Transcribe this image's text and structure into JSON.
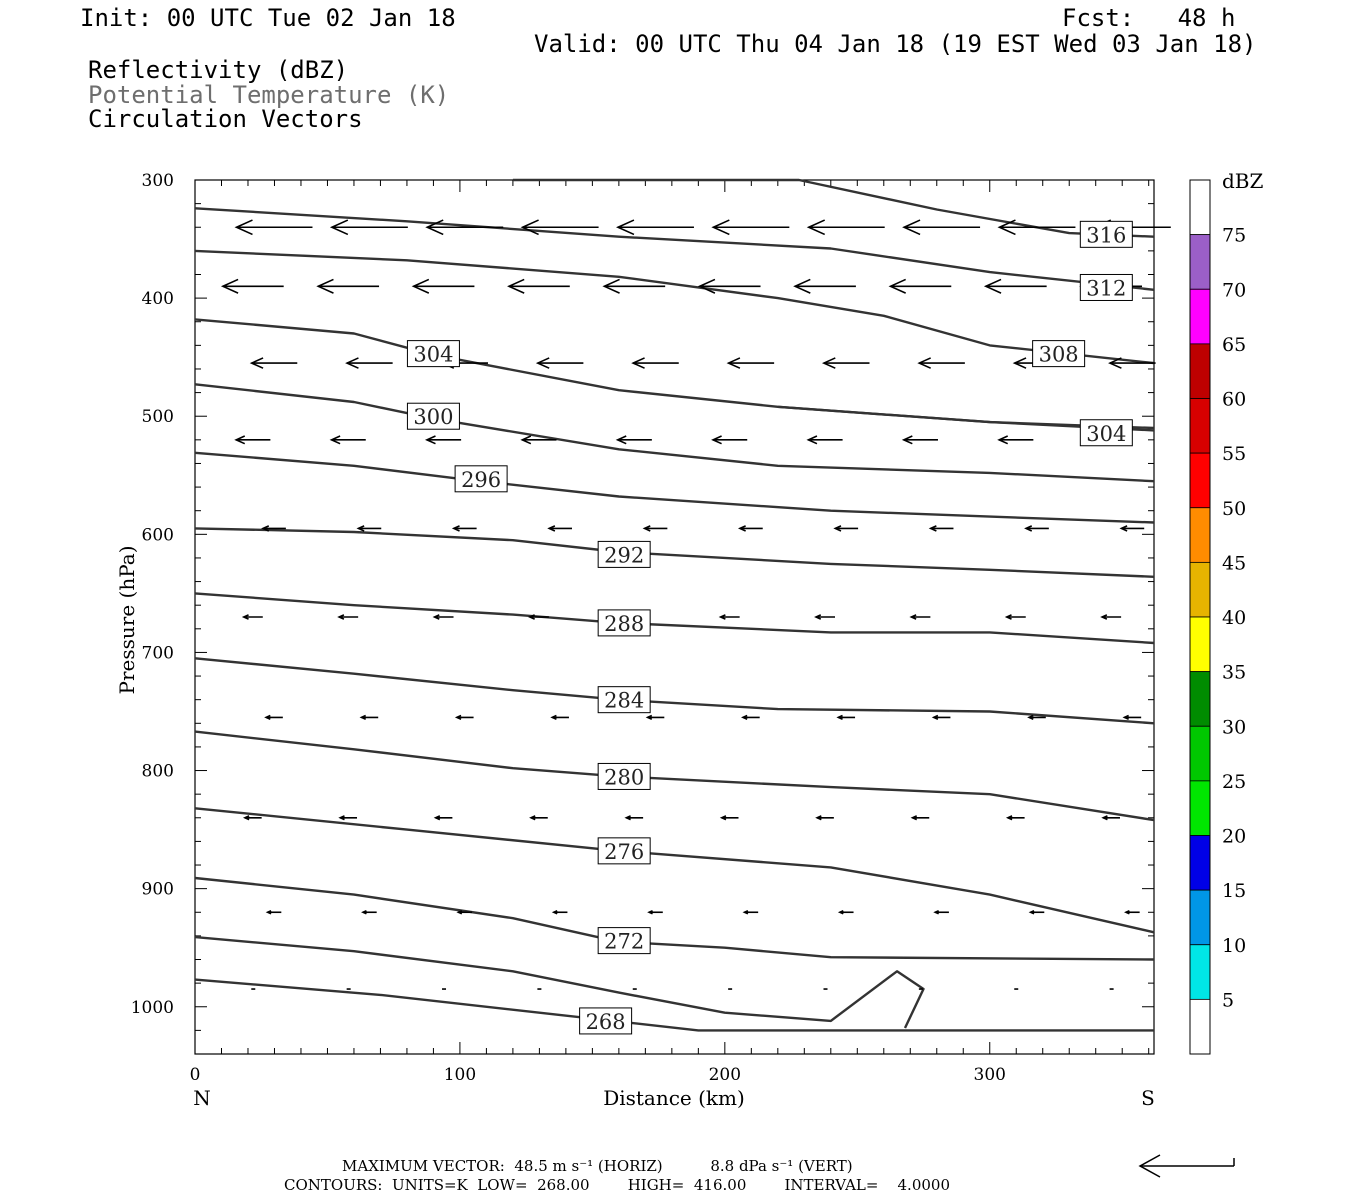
{
  "header": {
    "init": "Init: 00 UTC Tue 02 Jan 18",
    "fcst": "Fcst:   48 h",
    "valid": "Valid: 00 UTC Thu 04 Jan 18 (19 EST Wed 03 Jan 18)",
    "field1": "Reflectivity (dBZ)",
    "field2": "Potential Temperature (K)",
    "field3": "Circulation Vectors"
  },
  "footer": {
    "max_vector": "MAXIMUM VECTOR:  48.5 m s⁻¹ (HORIZ)          8.8 dPa s⁻¹ (VERT)",
    "contours": "CONTOURS:  UNITS=K  LOW=  268.00        HIGH=  416.00        INTERVAL=    4.0000"
  },
  "chart_data": {
    "type": "line",
    "xlabel": "Distance (km)",
    "ylabel": "Pressure (hPa)",
    "xlim": [
      0,
      362
    ],
    "ylim": [
      1040,
      300
    ],
    "x_ticks": [
      "0",
      "100",
      "200",
      "300"
    ],
    "x_tick_values": [
      0,
      100,
      200,
      300
    ],
    "y_ticks": [
      "300",
      "400",
      "500",
      "600",
      "700",
      "800",
      "900",
      "1000"
    ],
    "y_tick_values": [
      300,
      400,
      500,
      600,
      700,
      800,
      900,
      1000
    ],
    "left_end_label": "N",
    "right_end_label": "S",
    "colorbar": {
      "title": "dBZ",
      "labels": [
        "5",
        "10",
        "15",
        "20",
        "25",
        "30",
        "35",
        "40",
        "45",
        "50",
        "55",
        "60",
        "65",
        "70",
        "75"
      ],
      "colors": [
        "#ffffff",
        "#00e6e6",
        "#0096e6",
        "#0000e6",
        "#00e600",
        "#00c800",
        "#008c00",
        "#ffff00",
        "#e6b400",
        "#ff8c00",
        "#ff0000",
        "#d70000",
        "#be0000",
        "#ff00ff",
        "#9b5fc8",
        "#ffffff"
      ]
    },
    "series": [
      {
        "name": "268",
        "x": [
          0,
          70,
          150,
          190,
          260,
          362
        ],
        "y": [
          977,
          990,
          1010,
          1020,
          1020,
          1020
        ],
        "label_at": [
          155,
          1012
        ]
      },
      {
        "name": "272",
        "x": [
          0,
          60,
          120,
          160,
          200,
          240,
          265,
          275,
          268
        ],
        "y": [
          941,
          953,
          970,
          988,
          1005,
          1012,
          970,
          985,
          1018
        ]
      },
      {
        "name": "272",
        "x": [
          0,
          60,
          120,
          160,
          200,
          240,
          362
        ],
        "y": [
          891,
          905,
          925,
          945,
          950,
          958,
          960
        ],
        "label_at": [
          162,
          944
        ]
      },
      {
        "name": "276",
        "x": [
          0,
          80,
          160,
          240,
          300,
          362
        ],
        "y": [
          832,
          850,
          868,
          882,
          905,
          937
        ],
        "label_at": [
          162,
          868
        ]
      },
      {
        "name": "280",
        "x": [
          0,
          60,
          120,
          160,
          240,
          300,
          362
        ],
        "y": [
          767,
          782,
          798,
          805,
          814,
          820,
          842
        ],
        "label_at": [
          162,
          805
        ]
      },
      {
        "name": "284",
        "x": [
          0,
          60,
          120,
          160,
          220,
          300,
          362
        ],
        "y": [
          705,
          718,
          732,
          740,
          748,
          750,
          760
        ],
        "label_at": [
          162,
          740
        ]
      },
      {
        "name": "288",
        "x": [
          0,
          60,
          120,
          160,
          240,
          300,
          362
        ],
        "y": [
          650,
          660,
          668,
          675,
          683,
          683,
          692
        ],
        "label_at": [
          162,
          675
        ]
      },
      {
        "name": "292",
        "x": [
          0,
          60,
          120,
          160,
          240,
          300,
          362
        ],
        "y": [
          595,
          598,
          605,
          615,
          625,
          630,
          636
        ],
        "label_at": [
          162,
          617
        ]
      },
      {
        "name": "296",
        "x": [
          0,
          60,
          100,
          160,
          240,
          300,
          362
        ],
        "y": [
          531,
          542,
          553,
          568,
          580,
          585,
          590
        ],
        "label_at": [
          108,
          553
        ]
      },
      {
        "name": "300",
        "x": [
          0,
          60,
          90,
          160,
          220,
          300,
          362
        ],
        "y": [
          473,
          488,
          502,
          528,
          542,
          548,
          555
        ],
        "label_at": [
          90,
          500
        ]
      },
      {
        "name": "304",
        "x": [
          0,
          60,
          90,
          160,
          220,
          300,
          362
        ],
        "y": [
          418,
          430,
          448,
          478,
          492,
          505,
          510
        ],
        "label_at": [
          90,
          447
        ]
      },
      {
        "name": "304",
        "x": [
          220,
          300,
          362
        ],
        "y": [
          492,
          505,
          512
        ],
        "label_at": [
          344,
          514
        ]
      },
      {
        "name": "308",
        "x": [
          0,
          80,
          160,
          220,
          260,
          300,
          362
        ],
        "y": [
          360,
          368,
          382,
          400,
          415,
          440,
          455
        ],
        "label_at": [
          326,
          447
        ]
      },
      {
        "name": "312",
        "x": [
          0,
          80,
          160,
          240,
          300,
          362
        ],
        "y": [
          324,
          335,
          348,
          358,
          378,
          393
        ],
        "label_at": [
          344,
          391
        ]
      },
      {
        "name": "316",
        "x": [
          120,
          180,
          228,
          280,
          330,
          362
        ],
        "y": [
          300,
          300,
          300,
          325,
          345,
          348
        ],
        "label_at": [
          344,
          346
        ]
      }
    ],
    "vectors": [
      {
        "p": 340,
        "dir": "W",
        "mag": 1.0
      },
      {
        "p": 390,
        "dir": "W",
        "mag": 0.8
      },
      {
        "p": 455,
        "dir": "W",
        "mag": 0.6
      },
      {
        "p": 520,
        "dir": "W",
        "mag": 0.45
      },
      {
        "p": 595,
        "dir": "W",
        "mag": 0.3
      },
      {
        "p": 670,
        "dir": "W",
        "mag": 0.25
      },
      {
        "p": 755,
        "dir": "W",
        "mag": 0.22
      },
      {
        "p": 840,
        "dir": "W",
        "mag": 0.22
      },
      {
        "p": 920,
        "dir": "W",
        "mag": 0.18
      },
      {
        "p": 985,
        "dir": "W",
        "mag": 0.05
      }
    ]
  }
}
